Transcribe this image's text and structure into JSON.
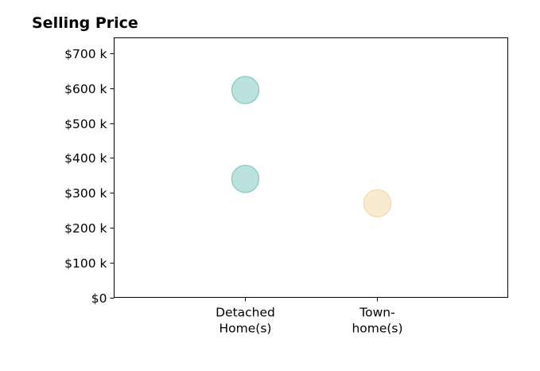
{
  "chart_data": {
    "type": "scatter",
    "title": "Selling Price",
    "xlabel": "",
    "ylabel": "",
    "categories": [
      [
        "Detached",
        "Home(s)"
      ],
      [
        "Town-",
        "home(s)"
      ]
    ],
    "yticks": [
      0,
      100000,
      200000,
      300000,
      400000,
      500000,
      600000,
      700000
    ],
    "ytick_labels": [
      "$0",
      "$100 k",
      "$200 k",
      "$300 k",
      "$400 k",
      "$500 k",
      "$600 k",
      "$700 k"
    ],
    "ylim": [
      0,
      745000
    ],
    "grid": false,
    "points": [
      {
        "category": 0,
        "y": 595000,
        "color": "#8fcfc7"
      },
      {
        "category": 0,
        "y": 340000,
        "color": "#8fcfc7"
      },
      {
        "category": 1,
        "y": 270000,
        "color": "#f5ddb0"
      }
    ]
  }
}
